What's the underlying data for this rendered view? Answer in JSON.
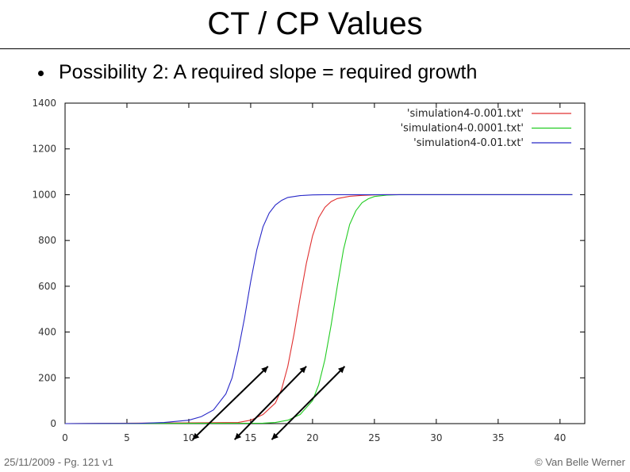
{
  "slide": {
    "title": "CT / CP Values",
    "bullet": "Possibility 2: A required slope = required growth",
    "footer_left": "25/11/2009 - Pg. 121 v1",
    "footer_right": "© Van Belle Werner"
  },
  "chart_data": {
    "type": "line",
    "title": "",
    "xlabel": "",
    "ylabel": "",
    "xlim": [
      0,
      42
    ],
    "ylim": [
      0,
      1400
    ],
    "xticks": [
      0,
      5,
      10,
      15,
      20,
      25,
      30,
      35,
      40
    ],
    "yticks": [
      0,
      200,
      400,
      600,
      800,
      1000,
      1200,
      1400
    ],
    "grid": false,
    "legend_position": "top-right",
    "series": [
      {
        "name": "'simulation4-0.001.txt'",
        "color": "#e03030",
        "x": [
          0,
          14,
          15,
          16,
          17,
          17.5,
          18,
          18.5,
          19,
          19.5,
          20,
          20.5,
          21,
          21.5,
          22,
          23,
          24,
          25,
          26,
          27,
          28,
          30,
          32,
          34,
          36,
          38,
          41
        ],
        "y": [
          0,
          5,
          15,
          40,
          90,
          150,
          250,
          390,
          550,
          700,
          820,
          900,
          945,
          970,
          983,
          993,
          997,
          999,
          1000,
          1000,
          1000,
          1000,
          1000,
          1000,
          1000,
          1000,
          1000
        ]
      },
      {
        "name": "'simulation4-0.0001.txt'",
        "color": "#22cc22",
        "x": [
          0,
          16,
          17,
          18,
          19,
          20,
          20.5,
          21,
          21.5,
          22,
          22.5,
          23,
          23.5,
          24,
          24.5,
          25,
          26,
          27,
          28,
          29,
          30,
          32,
          34,
          36,
          38,
          41
        ],
        "y": [
          0,
          2,
          5,
          15,
          40,
          100,
          170,
          280,
          430,
          600,
          760,
          870,
          930,
          965,
          982,
          992,
          998,
          1000,
          1000,
          1000,
          1000,
          1000,
          1000,
          1000,
          1000,
          1000
        ]
      },
      {
        "name": "'simulation4-0.01.txt'",
        "color": "#2828c8",
        "x": [
          0,
          6,
          8,
          10,
          11,
          12,
          13,
          13.5,
          14,
          14.5,
          15,
          15.5,
          16,
          16.5,
          17,
          17.5,
          18,
          19,
          20,
          21,
          22,
          23,
          25,
          30,
          35,
          41
        ],
        "y": [
          0,
          1,
          5,
          15,
          30,
          60,
          130,
          200,
          320,
          460,
          620,
          760,
          860,
          920,
          955,
          975,
          988,
          996,
          999,
          1000,
          1000,
          1000,
          1000,
          1000,
          1000,
          1000
        ]
      }
    ],
    "annotations": [
      {
        "type": "double-arrow",
        "from": [
          10.3,
          -70
        ],
        "to": [
          16.4,
          250
        ]
      },
      {
        "type": "double-arrow",
        "from": [
          13.7,
          -70
        ],
        "to": [
          19.5,
          250
        ]
      },
      {
        "type": "double-arrow",
        "from": [
          16.7,
          -70
        ],
        "to": [
          22.6,
          250
        ]
      }
    ]
  }
}
